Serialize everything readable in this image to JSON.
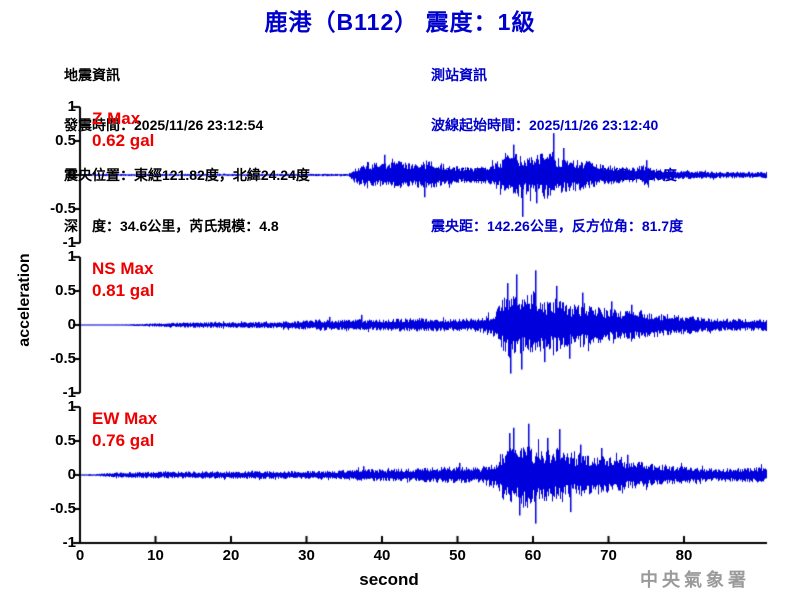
{
  "title": "鹿港（B112） 震度：1級",
  "info_left": {
    "lines": [
      "地震資訊",
      "發震時間：2025/11/26 23:12:54",
      "震央位置：東經121.82度，北緯24.24度",
      "深　度：34.6公里，芮氏規模：4.8"
    ]
  },
  "info_right": {
    "lines": [
      "測站資訊",
      "波線起始時間：2025/11/26 23:12:40",
      "測站位置：東經120.43度，北緯24.06度",
      "震央距：142.26公里，反方位角：81.7度"
    ]
  },
  "watermark": "中央氣象署",
  "colors": {
    "title_blue": "#0000CC",
    "info_blue": "#0000CC",
    "trace_blue": "#0000DD",
    "label_red": "#EE0000",
    "axis_black": "#000000",
    "watermark_gray": "#9A9A9A"
  },
  "chart_data": {
    "type": "line",
    "subtype": "seismogram-3-component",
    "title": "鹿港（B112） 震度：1級",
    "xlabel": "second",
    "ylabel": "acceleration",
    "x_range": [
      0,
      90
    ],
    "y_range": [
      -1,
      1
    ],
    "x_ticks": [
      0,
      10,
      20,
      30,
      40,
      50,
      60,
      70,
      80
    ],
    "y_tick_labels": [
      "1",
      "0.5",
      "0",
      "-0.5",
      "-1"
    ],
    "y_tick_values": [
      1,
      0.5,
      0,
      -0.5,
      -1
    ],
    "grid": false,
    "panels": [
      {
        "id": "Z",
        "label": "Z Max",
        "max_label": "0.62 gal",
        "max_gal": 0.62,
        "p_arrival_s": 36,
        "envelope": [
          [
            0,
            0.015
          ],
          [
            30,
            0.018
          ],
          [
            35.5,
            0.018
          ],
          [
            36.5,
            0.13
          ],
          [
            38,
            0.2
          ],
          [
            40,
            0.17
          ],
          [
            42,
            0.21
          ],
          [
            44,
            0.17
          ],
          [
            46,
            0.22
          ],
          [
            48,
            0.17
          ],
          [
            50,
            0.13
          ],
          [
            52,
            0.11
          ],
          [
            54,
            0.16
          ],
          [
            56,
            0.25
          ],
          [
            58,
            0.33
          ],
          [
            60,
            0.28
          ],
          [
            62,
            0.38
          ],
          [
            63,
            0.28
          ],
          [
            65,
            0.25
          ],
          [
            67,
            0.22
          ],
          [
            69,
            0.16
          ],
          [
            71,
            0.13
          ],
          [
            73,
            0.11
          ],
          [
            75,
            0.16
          ],
          [
            76,
            0.1
          ],
          [
            78,
            0.07
          ],
          [
            81,
            0.06
          ],
          [
            85,
            0.05
          ],
          [
            90,
            0.05
          ]
        ],
        "spikes": [
          [
            40.2,
            0.3
          ],
          [
            45.6,
            -0.33
          ],
          [
            57.3,
            0.45
          ],
          [
            58.6,
            -0.62
          ],
          [
            60.4,
            -0.42
          ],
          [
            62.7,
            0.62
          ],
          [
            64.0,
            0.4
          ],
          [
            75.0,
            0.22
          ]
        ]
      },
      {
        "id": "NS",
        "label": "NS Max",
        "max_label": "0.81 gal",
        "max_gal": 0.81,
        "s_arrival_s": 56,
        "envelope": [
          [
            0,
            0.008
          ],
          [
            6,
            0.01
          ],
          [
            10,
            0.025
          ],
          [
            14,
            0.04
          ],
          [
            20,
            0.045
          ],
          [
            26,
            0.05
          ],
          [
            30,
            0.07
          ],
          [
            32,
            0.09
          ],
          [
            34,
            0.07
          ],
          [
            36,
            0.1
          ],
          [
            38,
            0.08
          ],
          [
            41,
            0.09
          ],
          [
            44,
            0.11
          ],
          [
            47,
            0.1
          ],
          [
            50,
            0.09
          ],
          [
            53,
            0.11
          ],
          [
            55,
            0.2
          ],
          [
            56,
            0.42
          ],
          [
            57,
            0.5
          ],
          [
            58,
            0.42
          ],
          [
            59,
            0.38
          ],
          [
            60,
            0.5
          ],
          [
            61,
            0.4
          ],
          [
            62,
            0.36
          ],
          [
            63,
            0.42
          ],
          [
            64,
            0.34
          ],
          [
            65,
            0.3
          ],
          [
            67,
            0.34
          ],
          [
            69,
            0.27
          ],
          [
            71,
            0.23
          ],
          [
            73,
            0.25
          ],
          [
            75,
            0.2
          ],
          [
            77,
            0.17
          ],
          [
            79,
            0.15
          ],
          [
            81,
            0.13
          ],
          [
            84,
            0.1
          ],
          [
            87,
            0.09
          ],
          [
            90,
            0.09
          ]
        ],
        "spikes": [
          [
            33.0,
            0.12
          ],
          [
            37.2,
            0.15
          ],
          [
            56.6,
            0.62
          ],
          [
            57.0,
            -0.72
          ],
          [
            57.8,
            0.75
          ],
          [
            58.4,
            -0.66
          ],
          [
            60.2,
            0.81
          ],
          [
            61.5,
            -0.55
          ],
          [
            63.1,
            0.58
          ],
          [
            64.8,
            -0.5
          ],
          [
            66.5,
            0.48
          ],
          [
            70.3,
            0.35
          ],
          [
            73.0,
            0.3
          ]
        ]
      },
      {
        "id": "EW",
        "label": "EW Max",
        "max_label": "0.76 gal",
        "max_gal": 0.76,
        "s_arrival_s": 56,
        "envelope": [
          [
            0,
            0.01
          ],
          [
            2,
            0.015
          ],
          [
            5,
            0.04
          ],
          [
            10,
            0.05
          ],
          [
            16,
            0.055
          ],
          [
            22,
            0.06
          ],
          [
            28,
            0.06
          ],
          [
            33,
            0.065
          ],
          [
            36,
            0.08
          ],
          [
            38,
            0.1
          ],
          [
            40,
            0.09
          ],
          [
            43,
            0.1
          ],
          [
            46,
            0.11
          ],
          [
            49,
            0.13
          ],
          [
            51,
            0.12
          ],
          [
            53,
            0.11
          ],
          [
            55,
            0.22
          ],
          [
            56,
            0.38
          ],
          [
            57,
            0.45
          ],
          [
            58,
            0.42
          ],
          [
            59,
            0.48
          ],
          [
            60,
            0.42
          ],
          [
            61,
            0.38
          ],
          [
            62,
            0.4
          ],
          [
            63,
            0.42
          ],
          [
            64,
            0.36
          ],
          [
            66,
            0.32
          ],
          [
            68,
            0.3
          ],
          [
            70,
            0.27
          ],
          [
            72,
            0.22
          ],
          [
            74,
            0.2
          ],
          [
            77,
            0.16
          ],
          [
            80,
            0.13
          ],
          [
            83,
            0.11
          ],
          [
            86,
            0.1
          ],
          [
            88,
            0.11
          ],
          [
            90,
            0.12
          ]
        ],
        "spikes": [
          [
            37.5,
            0.13
          ],
          [
            50.2,
            0.18
          ],
          [
            56.8,
            0.62
          ],
          [
            57.4,
            0.7
          ],
          [
            58.1,
            -0.6
          ],
          [
            59.3,
            0.76
          ],
          [
            60.3,
            -0.72
          ],
          [
            61.8,
            0.55
          ],
          [
            63.4,
            0.68
          ],
          [
            64.9,
            -0.55
          ],
          [
            66.2,
            0.45
          ],
          [
            69.0,
            0.4
          ],
          [
            72.5,
            0.3
          ]
        ]
      }
    ]
  }
}
